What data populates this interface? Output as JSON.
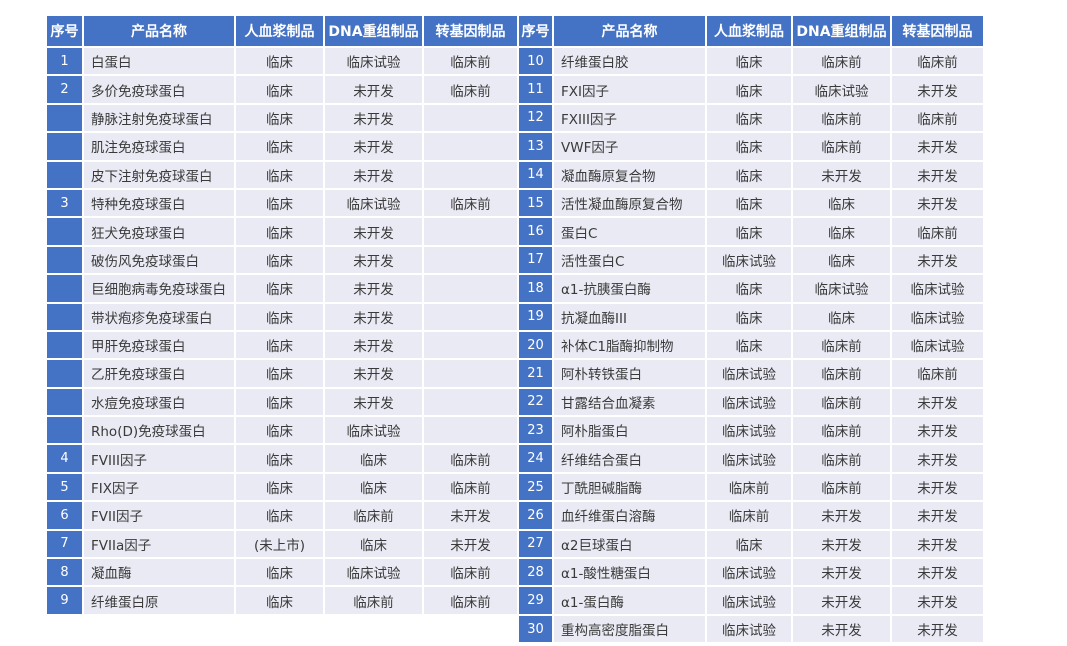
{
  "columns": [
    "序号",
    "产品名称",
    "人血浆制品",
    "DNA重组制品",
    "转基因制品"
  ],
  "statuses_seen": [
    "临床",
    "临床试验",
    "临床前",
    "未开发",
    "(未上市)"
  ],
  "tables": [
    {
      "name": "products-1-9",
      "rows": [
        [
          "1",
          "白蛋白",
          "临床",
          "临床试验",
          "临床前"
        ],
        [
          "2",
          "多价免疫球蛋白",
          "临床",
          "未开发",
          "临床前"
        ],
        [
          "",
          "静脉注射免疫球蛋白",
          "临床",
          "未开发",
          ""
        ],
        [
          "",
          "肌注免疫球蛋白",
          "临床",
          "未开发",
          ""
        ],
        [
          "",
          "皮下注射免疫球蛋白",
          "临床",
          "未开发",
          ""
        ],
        [
          "3",
          "特种免疫球蛋白",
          "临床",
          "临床试验",
          "临床前"
        ],
        [
          "",
          "狂犬免疫球蛋白",
          "临床",
          "未开发",
          ""
        ],
        [
          "",
          "破伤风免疫球蛋白",
          "临床",
          "未开发",
          ""
        ],
        [
          "",
          "巨细胞病毒免疫球蛋白",
          "临床",
          "未开发",
          ""
        ],
        [
          "",
          "带状疱疹免疫球蛋白",
          "临床",
          "未开发",
          ""
        ],
        [
          "",
          "甲肝免疫球蛋白",
          "临床",
          "未开发",
          ""
        ],
        [
          "",
          "乙肝免疫球蛋白",
          "临床",
          "未开发",
          ""
        ],
        [
          "",
          "水痘免疫球蛋白",
          "临床",
          "未开发",
          ""
        ],
        [
          "",
          "Rho(D)免疫球蛋白",
          "临床",
          "临床试验",
          ""
        ],
        [
          "4",
          "FVIII因子",
          "临床",
          "临床",
          "临床前"
        ],
        [
          "5",
          "FIX因子",
          "临床",
          "临床",
          "临床前"
        ],
        [
          "6",
          "FVII因子",
          "临床",
          "临床前",
          "未开发"
        ],
        [
          "7",
          "FVIIa因子",
          "(未上市)",
          "临床",
          "未开发"
        ],
        [
          "8",
          "凝血酶",
          "临床",
          "临床试验",
          "临床前"
        ],
        [
          "9",
          "纤维蛋白原",
          "临床",
          "临床前",
          "临床前"
        ]
      ]
    },
    {
      "name": "products-10-30",
      "rows": [
        [
          "10",
          "纤维蛋白胶",
          "临床",
          "临床前",
          "临床前"
        ],
        [
          "11",
          "FXI因子",
          "临床",
          "临床试验",
          "未开发"
        ],
        [
          "12",
          "FXIII因子",
          "临床",
          "临床前",
          "临床前"
        ],
        [
          "13",
          "VWF因子",
          "临床",
          "临床前",
          "未开发"
        ],
        [
          "14",
          "凝血酶原复合物",
          "临床",
          "未开发",
          "未开发"
        ],
        [
          "15",
          "活性凝血酶原复合物",
          "临床",
          "临床",
          "未开发"
        ],
        [
          "16",
          "蛋白C",
          "临床",
          "临床",
          "临床前"
        ],
        [
          "17",
          "活性蛋白C",
          "临床试验",
          "临床",
          "未开发"
        ],
        [
          "18",
          "α1-抗胰蛋白酶",
          "临床",
          "临床试验",
          "临床试验"
        ],
        [
          "19",
          "抗凝血酶III",
          "临床",
          "临床",
          "临床试验"
        ],
        [
          "20",
          "补体C1脂酶抑制物",
          "临床",
          "临床前",
          "临床试验"
        ],
        [
          "21",
          "阿朴转铁蛋白",
          "临床试验",
          "临床前",
          "临床前"
        ],
        [
          "22",
          "甘露结合血凝素",
          "临床试验",
          "临床前",
          "未开发"
        ],
        [
          "23",
          "阿朴脂蛋白",
          "临床试验",
          "临床前",
          "未开发"
        ],
        [
          "24",
          "纤维结合蛋白",
          "临床试验",
          "临床前",
          "未开发"
        ],
        [
          "25",
          "丁酰胆碱脂酶",
          "临床前",
          "临床前",
          "未开发"
        ],
        [
          "26",
          "血纤维蛋白溶酶",
          "临床前",
          "未开发",
          "未开发"
        ],
        [
          "27",
          "α2巨球蛋白",
          "临床",
          "未开发",
          "未开发"
        ],
        [
          "28",
          "α1-酸性糖蛋白",
          "临床试验",
          "未开发",
          "未开发"
        ],
        [
          "29",
          "α1-蛋白酶",
          "临床试验",
          "未开发",
          "未开发"
        ],
        [
          "30",
          "重构高密度脂蛋白",
          "临床试验",
          "未开发",
          "未开发"
        ]
      ]
    }
  ],
  "colors": {
    "header_bg": "#4472C4",
    "index_bg": "#4472C4",
    "header_text": "#FFFFFF",
    "row_bg": "#E9EAF4",
    "body_text": "#3A3A3A",
    "separator": "#FFFFFF"
  }
}
